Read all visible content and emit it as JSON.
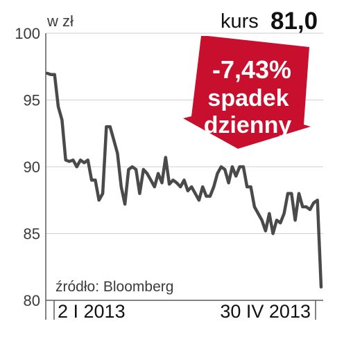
{
  "header": {
    "unit": "w zł",
    "kurs_label": "kurs",
    "kurs_value": "81,0"
  },
  "badge": {
    "percent": "-7,43%",
    "line1": "spadek",
    "line2": "dzienny",
    "color": "#c8102e"
  },
  "source": "źródło: Bloomberg",
  "colors": {
    "line": "#4a4a4a",
    "grid": "#cfcfcf",
    "axis": "#5a5a5a"
  },
  "chart_data": {
    "type": "line",
    "ylim": [
      80,
      100
    ],
    "yticks": [
      "100",
      "95",
      "90",
      "85",
      "80"
    ],
    "xtick_labels": [
      "2 I 2013",
      "30 IV 2013"
    ],
    "grid": true,
    "series": [
      {
        "values": [
          97.0,
          96.9,
          96.9,
          94.5,
          93.5,
          90.5,
          90.4,
          90.5,
          90.0,
          90.5,
          90.3,
          90.5,
          89.0,
          89.0,
          87.5,
          88.0,
          93.0,
          93.0,
          92.0,
          91.0,
          88.5,
          87.2,
          89.8,
          90.0,
          89.8,
          88.0,
          89.8,
          89.5,
          89.0,
          88.5,
          89.5,
          88.8,
          90.7,
          88.7,
          89.0,
          88.8,
          88.5,
          89.0,
          88.2,
          88.5,
          88.0,
          87.5,
          88.5,
          87.8,
          87.8,
          88.5,
          89.5,
          90.0,
          89.8,
          88.8,
          90.0,
          89.3,
          90.0,
          90.0,
          88.5,
          88.5,
          87.0,
          86.5,
          86.0,
          85.2,
          86.5,
          85.0,
          86.0,
          85.8,
          86.5,
          88.0,
          88.0,
          86.0,
          88.0,
          87.0,
          87.0,
          86.8,
          87.3,
          87.5,
          81.0
        ]
      }
    ]
  }
}
